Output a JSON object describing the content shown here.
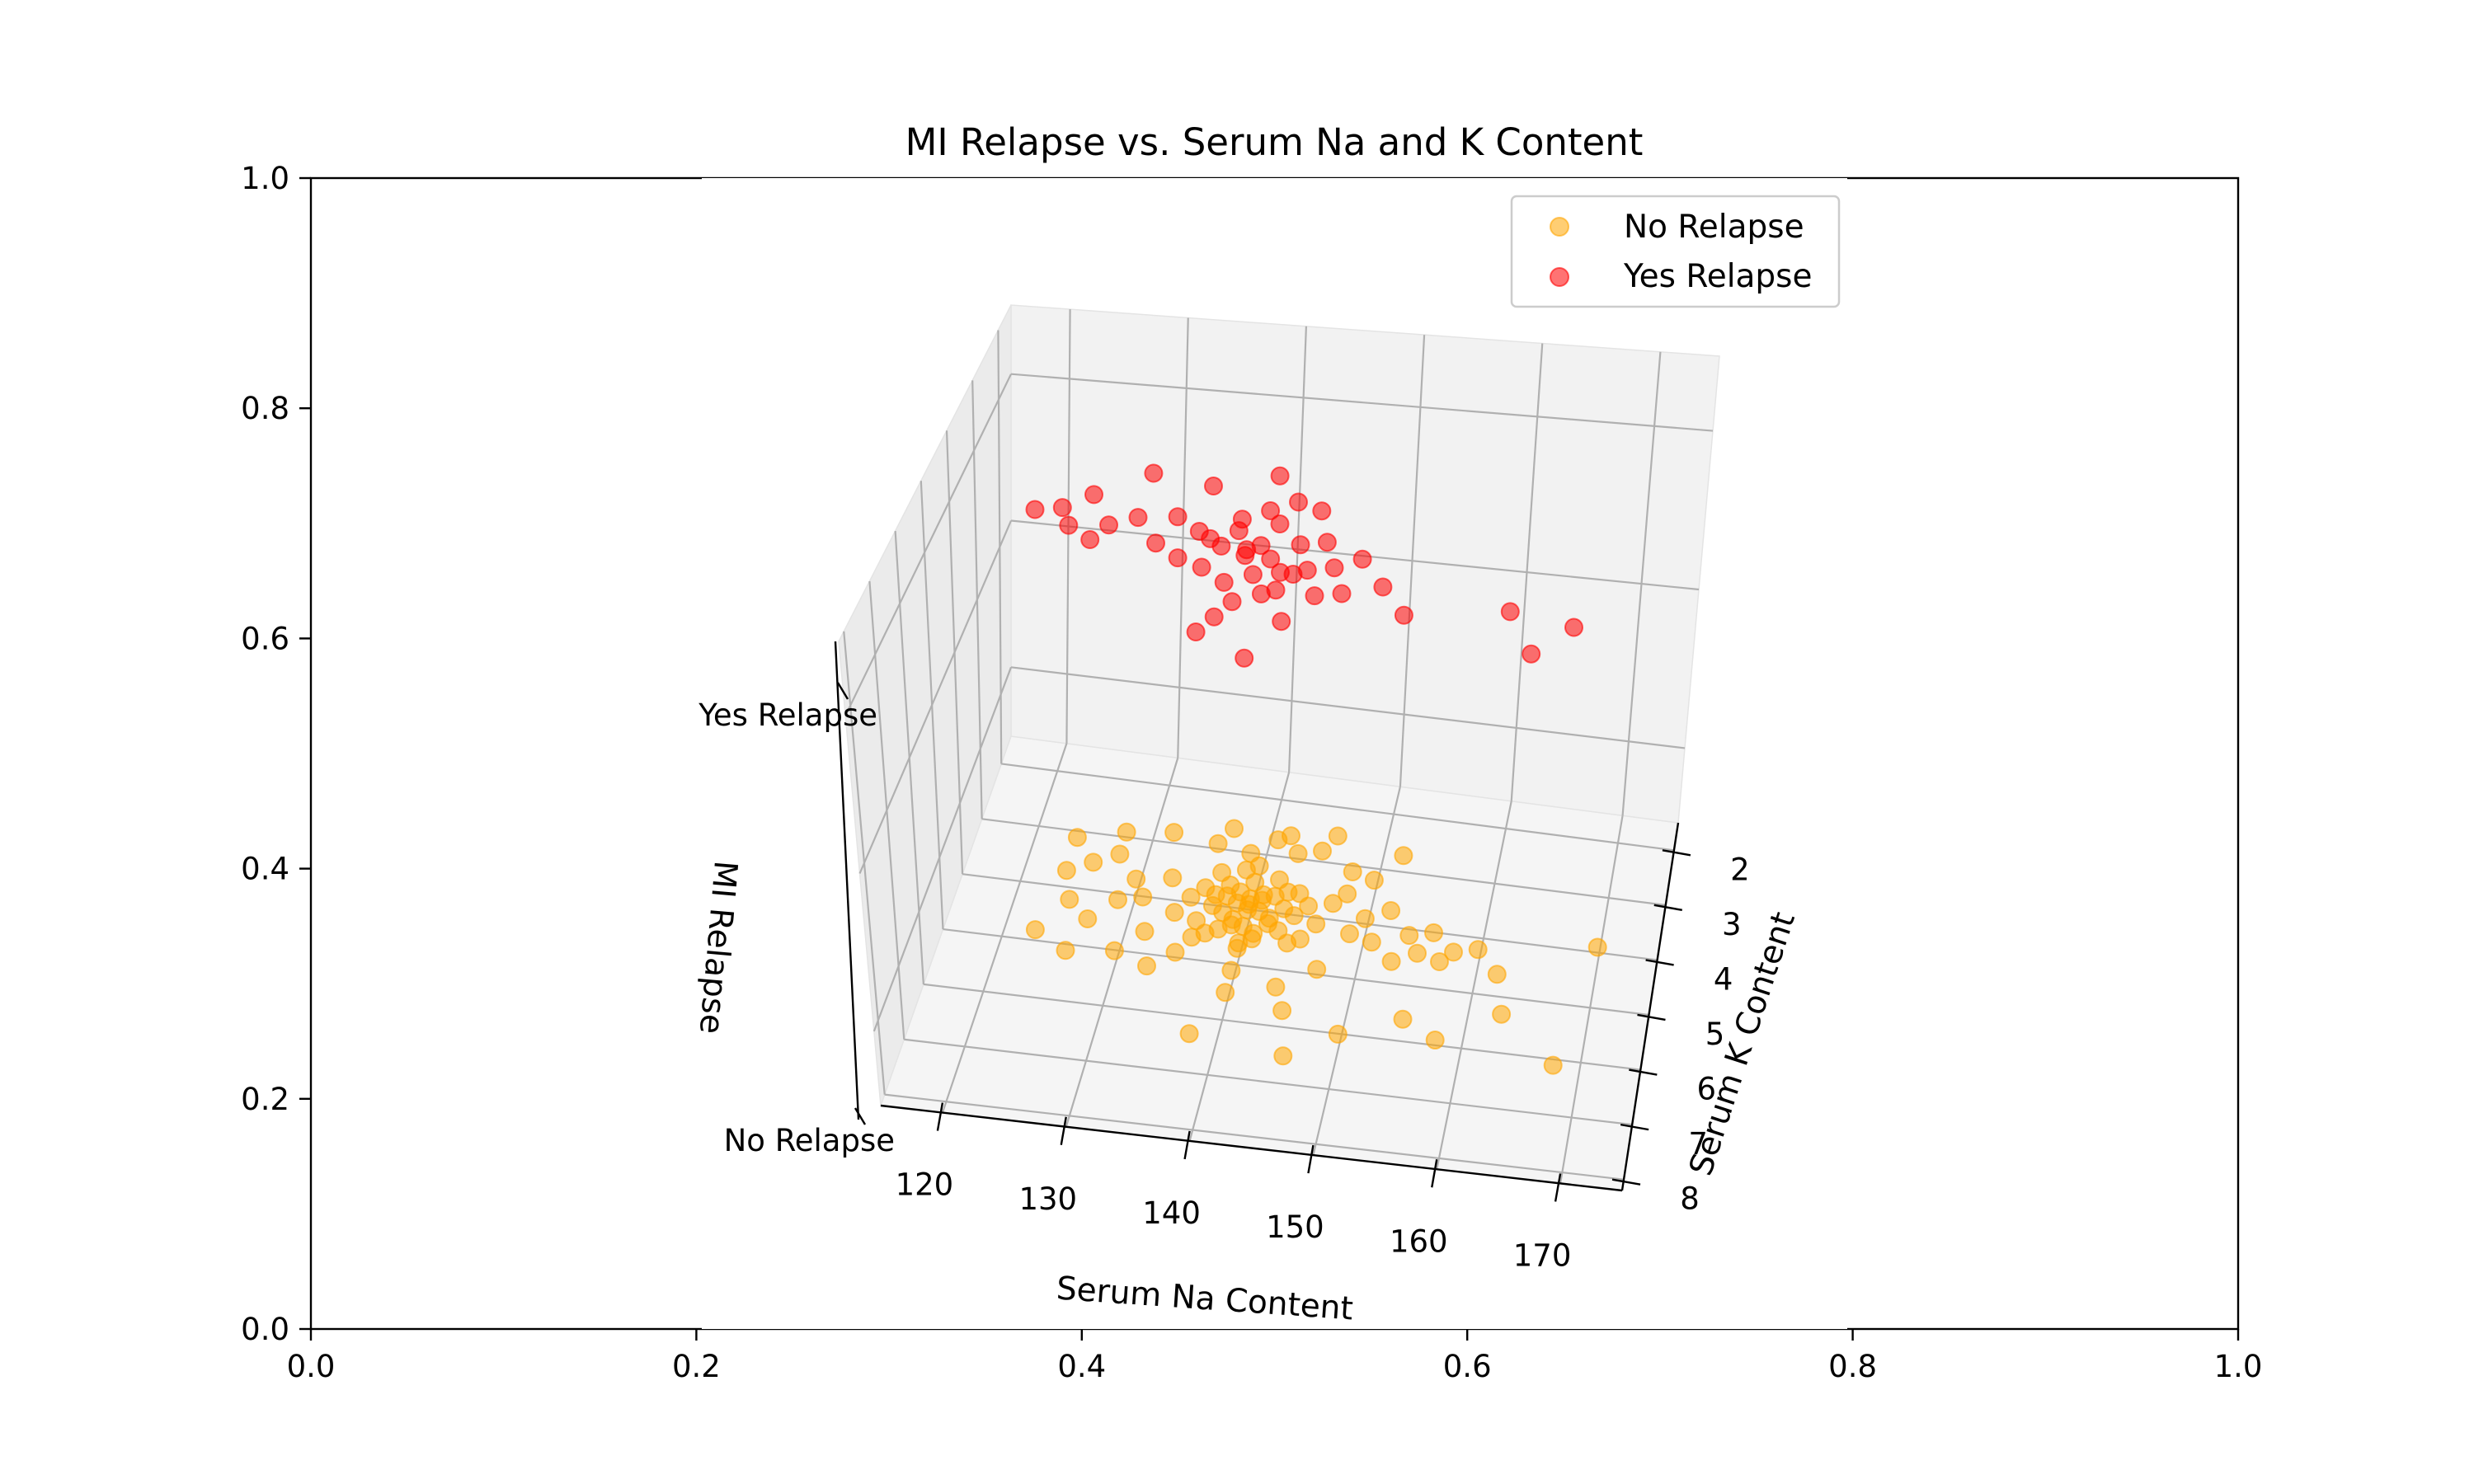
{
  "chart_data": [
    {
      "type": "scatter",
      "title": "",
      "xlabel": "",
      "ylabel": "",
      "xlim": [
        0.0,
        1.0
      ],
      "ylim": [
        0.0,
        1.0
      ],
      "x_ticks": [
        "0.0",
        "0.2",
        "0.4",
        "0.6",
        "0.8",
        "1.0"
      ],
      "y_ticks": [
        "0.0",
        "0.2",
        "0.4",
        "0.6",
        "0.8",
        "1.0"
      ],
      "grid": false
    },
    {
      "type": "scatter3d",
      "title": "MI Relapse vs. Serum Na and K Content",
      "xlabel": "Serum Na Content",
      "ylabel": "Serum K Content",
      "zlabel": "MI Relapse",
      "xlim": [
        115,
        175
      ],
      "ylim": [
        1.5,
        8.2
      ],
      "x_ticks": [
        "120",
        "130",
        "140",
        "150",
        "160",
        "170"
      ],
      "y_ticks": [
        "2",
        "3",
        "4",
        "5",
        "6",
        "7",
        "8"
      ],
      "z_ticks": [
        "No Relapse",
        "Yes Relapse"
      ],
      "grid": true,
      "legend_position": "top-right",
      "series": [
        {
          "name": "No Relapse",
          "color": "#FFA500",
          "z": 0,
          "points": [
            [
              140,
              4.2
            ],
            [
              138,
              4.1
            ],
            [
              137,
              4.3
            ],
            [
              141,
              4.0
            ],
            [
              139,
              4.5
            ],
            [
              140,
              3.8
            ],
            [
              142,
              4.4
            ],
            [
              136,
              4.0
            ],
            [
              143,
              4.2
            ],
            [
              138,
              3.9
            ],
            [
              139,
              4.6
            ],
            [
              141,
              4.7
            ],
            [
              140,
              4.9
            ],
            [
              137,
              4.8
            ],
            [
              142,
              3.7
            ],
            [
              144,
              4.3
            ],
            [
              135,
              4.2
            ],
            [
              145,
              4.1
            ],
            [
              139,
              3.6
            ],
            [
              140,
              5.0
            ],
            [
              143,
              4.6
            ],
            [
              146,
              4.4
            ],
            [
              134,
              4.5
            ],
            [
              138,
              4.4
            ],
            [
              141,
              4.1
            ],
            [
              140,
              4.3
            ],
            [
              139,
              4.2
            ],
            [
              142,
              4.0
            ],
            [
              137,
              4.1
            ],
            [
              136,
              4.6
            ],
            [
              144,
              4.8
            ],
            [
              147,
              4.0
            ],
            [
              133,
              3.9
            ],
            [
              140,
              3.5
            ],
            [
              145,
              4.7
            ],
            [
              131,
              4.3
            ],
            [
              149,
              4.5
            ],
            [
              148,
              3.8
            ],
            [
              132,
              4.9
            ],
            [
              130,
              4.0
            ],
            [
              129,
              4.4
            ],
            [
              128,
              3.6
            ],
            [
              127,
              4.8
            ],
            [
              150,
              4.2
            ],
            [
              151,
              4.6
            ],
            [
              152,
              4.0
            ],
            [
              153,
              4.9
            ],
            [
              154,
              4.4
            ],
            [
              155,
              4.7
            ],
            [
              156,
              4.3
            ],
            [
              157,
              4.8
            ],
            [
              158,
              4.6
            ],
            [
              160,
              4.5
            ],
            [
              162,
              4.9
            ],
            [
              170,
              4.2
            ],
            [
              125,
              4.5
            ],
            [
              124,
              4.0
            ],
            [
              123,
              5.1
            ],
            [
              126,
              3.8
            ],
            [
              126,
              5.4
            ],
            [
              130,
              5.3
            ],
            [
              133,
              5.5
            ],
            [
              140,
              5.8
            ],
            [
              145,
              6.0
            ],
            [
              150,
              6.3
            ],
            [
              155,
              5.9
            ],
            [
              158,
              6.2
            ],
            [
              163,
              5.6
            ],
            [
              168,
              6.4
            ],
            [
              138,
              6.6
            ],
            [
              146,
              6.8
            ],
            [
              140,
              5.4
            ],
            [
              135,
              5.2
            ],
            [
              144,
              5.6
            ],
            [
              147,
              5.2
            ],
            [
              143,
              3.2
            ],
            [
              141,
              3.0
            ],
            [
              139,
              3.3
            ],
            [
              136,
              3.2
            ],
            [
              145,
              3.1
            ],
            [
              137,
              2.9
            ],
            [
              148,
              3.4
            ],
            [
              150,
              3.5
            ],
            [
              132,
              3.1
            ],
            [
              128,
              3.2
            ],
            [
              124,
              3.4
            ],
            [
              146,
              2.8
            ],
            [
              142,
              2.9
            ],
            [
              152,
              3.0
            ],
            [
              143,
              3.9
            ],
            [
              138,
              4.7
            ],
            [
              141,
              4.8
            ],
            [
              140,
              4.6
            ],
            [
              139,
              4.0
            ],
            [
              142,
              4.5
            ],
            [
              137,
              3.7
            ],
            [
              144,
              3.9
            ],
            [
              136,
              4.9
            ],
            [
              140,
              4.1
            ],
            [
              141,
              4.3
            ]
          ]
        },
        {
          "name": "Yes Relapse",
          "color": "#FF0000",
          "z": 1,
          "points": [
            [
              138,
              4.0
            ],
            [
              140,
              4.2
            ],
            [
              139,
              4.4
            ],
            [
              141,
              3.8
            ],
            [
              142,
              4.6
            ],
            [
              137,
              4.3
            ],
            [
              143,
              4.1
            ],
            [
              136,
              4.7
            ],
            [
              144,
              4.5
            ],
            [
              140,
              3.6
            ],
            [
              138,
              4.9
            ],
            [
              141,
              5.0
            ],
            [
              145,
              4.0
            ],
            [
              146,
              4.4
            ],
            [
              135,
              4.1
            ],
            [
              134,
              4.6
            ],
            [
              147,
              4.8
            ],
            [
              133,
              3.9
            ],
            [
              139,
              5.2
            ],
            [
              142,
              3.4
            ],
            [
              148,
              4.2
            ],
            [
              132,
              4.4
            ],
            [
              130,
              4.0
            ],
            [
              128,
              4.2
            ],
            [
              150,
              4.6
            ],
            [
              152,
              5.0
            ],
            [
              127,
              4.5
            ],
            [
              126,
              3.7
            ],
            [
              160,
              4.7
            ],
            [
              162,
              5.3
            ],
            [
              165,
              4.8
            ],
            [
              124,
              4.0
            ],
            [
              125,
              4.3
            ],
            [
              122,
              4.1
            ],
            [
              130,
              3.2
            ],
            [
              135,
              3.3
            ],
            [
              140,
              3.0
            ],
            [
              143,
              5.4
            ],
            [
              138,
              5.5
            ],
            [
              141,
              6.1
            ],
            [
              144,
              3.5
            ],
            [
              137,
              5.8
            ],
            [
              139,
              4.3
            ],
            [
              140,
              4.7
            ],
            [
              142,
              4.9
            ],
            [
              136,
              4.2
            ],
            [
              143,
              4.6
            ],
            [
              138,
              3.8
            ],
            [
              141,
              4.4
            ],
            [
              145,
              4.9
            ]
          ]
        }
      ]
    }
  ]
}
